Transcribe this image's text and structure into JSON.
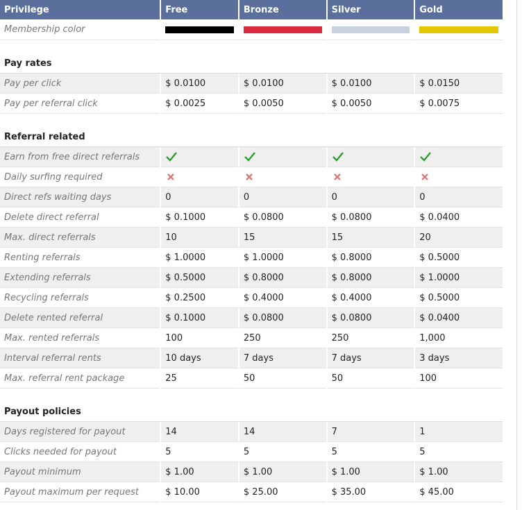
{
  "header": [
    "Privilege",
    "Free",
    "Bronze",
    "Silver",
    "Gold"
  ],
  "membership_color": {
    "label": "Membership color",
    "colors": [
      "#000000",
      "#dd2a40",
      "#c9d0de",
      "#e3c800"
    ]
  },
  "sections": [
    {
      "title": "Pay rates",
      "rows": [
        {
          "label": "Pay per click",
          "values": [
            "$ 0.0100",
            "$ 0.0100",
            "$ 0.0100",
            "$ 0.0150"
          ]
        },
        {
          "label": "Pay per referral click",
          "values": [
            "$ 0.0025",
            "$ 0.0050",
            "$ 0.0050",
            "$ 0.0075"
          ]
        }
      ]
    },
    {
      "title": "Referral related",
      "rows": [
        {
          "label": "Earn from free direct referrals"
        },
        {
          "label": "Daily surfing required"
        },
        {
          "label": "Direct refs waiting days",
          "values": [
            "0",
            "0",
            "0",
            "0"
          ]
        },
        {
          "label": "Delete direct referral",
          "values": [
            "$ 0.1000",
            "$ 0.0800",
            "$ 0.0800",
            "$ 0.0400"
          ]
        },
        {
          "label": "Max. direct referrals",
          "values": [
            "10",
            "15",
            "15",
            "20"
          ]
        },
        {
          "label": "Renting referrals",
          "values": [
            "$ 1.0000",
            "$ 1.0000",
            "$ 0.8000",
            "$ 0.5000"
          ]
        },
        {
          "label": "Extending referrals",
          "values": [
            "$ 0.5000",
            "$ 0.8000",
            "$ 0.8000",
            "$ 1.0000"
          ]
        },
        {
          "label": "Recycling referrals",
          "values": [
            "$ 0.2500",
            "$ 0.4000",
            "$ 0.4000",
            "$ 0.5000"
          ]
        },
        {
          "label": "Delete rented referral",
          "values": [
            "$ 0.1000",
            "$ 0.0800",
            "$ 0.0800",
            "$ 0.0400"
          ]
        },
        {
          "label": "Max. rented referrals",
          "values": [
            "100",
            "250",
            "250",
            "1,000"
          ]
        },
        {
          "label": "Interval referral rents",
          "values": [
            "10 days",
            "7 days",
            "7 days",
            "3 days"
          ]
        },
        {
          "label": "Max. referral rent package",
          "values": [
            "25",
            "50",
            "50",
            "100"
          ]
        }
      ]
    },
    {
      "title": "Payout policies",
      "rows": [
        {
          "label": "Days registered for payout",
          "values": [
            "14",
            "14",
            "7",
            "1"
          ]
        },
        {
          "label": "Clicks needed for payout",
          "values": [
            "5",
            "5",
            "5",
            "5"
          ]
        },
        {
          "label": "Payout minimum",
          "values": [
            "$ 1.00",
            "$ 1.00",
            "$ 1.00",
            "$ 1.00"
          ]
        },
        {
          "label": "Payout maximum per request",
          "values": [
            "$ 10.00",
            "$ 25.00",
            "$ 35.00",
            "$ 45.00"
          ]
        }
      ]
    }
  ]
}
